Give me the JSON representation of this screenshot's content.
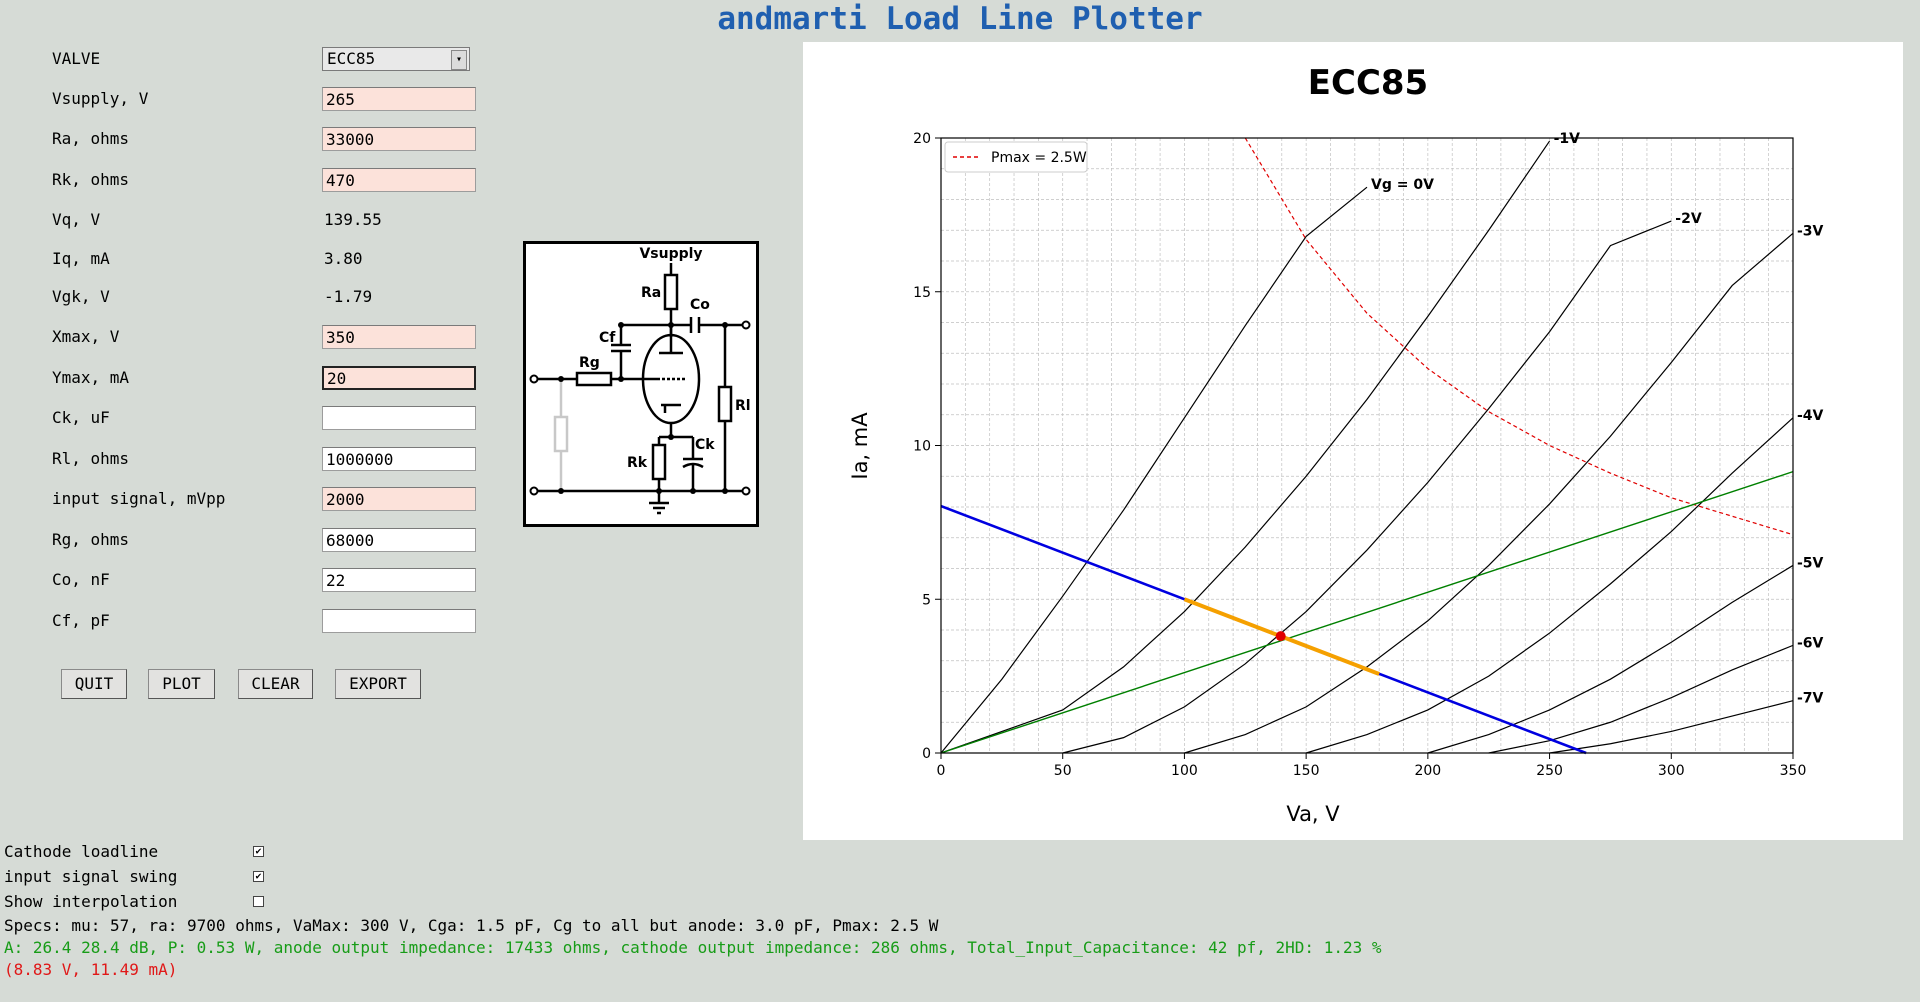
{
  "title": "andmarti Load Line Plotter",
  "params": [
    {
      "label": "VALVE",
      "type": "select",
      "value": "ECC85"
    },
    {
      "label": "Vsupply, V",
      "type": "input",
      "value": "265",
      "highlight": true
    },
    {
      "label": "Ra, ohms",
      "type": "input",
      "value": "33000",
      "highlight": true
    },
    {
      "label": "Rk, ohms",
      "type": "input",
      "value": "470",
      "highlight": true
    },
    {
      "label": "Vq, V",
      "type": "text",
      "value": "139.55"
    },
    {
      "label": "Iq, mA",
      "type": "text",
      "value": "3.80"
    },
    {
      "label": "Vgk, V",
      "type": "text",
      "value": "-1.79"
    },
    {
      "label": "Xmax, V",
      "type": "input",
      "value": "350",
      "highlight": true
    },
    {
      "label": "Ymax, mA",
      "type": "input",
      "value": "20",
      "highlight": true,
      "focused": true
    },
    {
      "label": "Ck, uF",
      "type": "input",
      "value": ""
    },
    {
      "label": "Rl, ohms",
      "type": "input",
      "value": "1000000"
    },
    {
      "label": "input signal, mVpp",
      "type": "input",
      "value": "2000",
      "highlight": true
    },
    {
      "label": "Rg, ohms",
      "type": "input",
      "value": "68000"
    },
    {
      "label": "Co, nF",
      "type": "input",
      "value": "22"
    },
    {
      "label": "Cf, pF",
      "type": "input",
      "value": ""
    }
  ],
  "buttons": {
    "quit": "QUIT",
    "plot": "PLOT",
    "clear": "CLEAR",
    "export": "EXPORT"
  },
  "schematic": {
    "vsupply": "Vsupply",
    "ra": "Ra",
    "co": "Co",
    "cf": "Cf",
    "rg": "Rg",
    "rl": "Rl",
    "rk": "Rk",
    "ck": "Ck"
  },
  "options": [
    {
      "label": "Cathode loadline",
      "checked": true
    },
    {
      "label": "input signal swing",
      "checked": true
    },
    {
      "label": "Show interpolation",
      "checked": false
    }
  ],
  "status": {
    "specs": "Specs: mu: 57, ra: 9700 ohms, VaMax: 300 V, Cga: 1.5 pF, Cg to all but anode: 3.0 pF, Pmax: 2.5 W",
    "results": "A: 26.4 28.4 dB, P: 0.53 W, anode output impedance: 17433 ohms, cathode output impedance: 286 ohms, Total_Input_Capacitance: 42 pf, 2HD: 1.23 %",
    "cursor": "(8.83 V, 11.49 mA)"
  },
  "colors": {
    "title": "#1f5fb0",
    "loadline": "#0000e0",
    "swing": "#f5a000",
    "cathode": "#008000",
    "pmax": "#e00000",
    "qpoint": "#e00000"
  },
  "chart_data": {
    "type": "line",
    "title": "ECC85",
    "xlabel": "Va, V",
    "ylabel": "Ia, mA",
    "xlim": [
      0,
      350
    ],
    "ylim": [
      0,
      20
    ],
    "xticks": [
      0,
      50,
      100,
      150,
      200,
      250,
      300,
      350
    ],
    "yticks": [
      0,
      5,
      10,
      15,
      20
    ],
    "grid": true,
    "legend": {
      "position": "top-left",
      "entries": [
        "Pmax = 2.5W"
      ]
    },
    "curves": [
      {
        "label": "Vg = 0V",
        "x": [
          0,
          25,
          50,
          75,
          100,
          125,
          150,
          175
        ],
        "y": [
          0,
          2.4,
          5.1,
          7.9,
          10.9,
          13.9,
          16.8,
          18.4
        ]
      },
      {
        "label": "-1V",
        "x": [
          0,
          50,
          75,
          100,
          125,
          150,
          175,
          200,
          225,
          250
        ],
        "y": [
          0,
          1.4,
          2.8,
          4.6,
          6.7,
          9.0,
          11.5,
          14.2,
          17.0,
          19.9
        ]
      },
      {
        "label": "-2V",
        "x": [
          50,
          75,
          100,
          125,
          150,
          175,
          200,
          225,
          250,
          275,
          300
        ],
        "y": [
          0,
          0.5,
          1.5,
          2.9,
          4.6,
          6.6,
          8.8,
          11.2,
          13.7,
          16.5,
          17.3
        ]
      },
      {
        "label": "-3V",
        "x": [
          100,
          125,
          150,
          175,
          200,
          225,
          250,
          275,
          300,
          325,
          350
        ],
        "y": [
          0,
          0.6,
          1.5,
          2.8,
          4.3,
          6.1,
          8.1,
          10.3,
          12.7,
          15.2,
          16.9
        ]
      },
      {
        "label": "-4V",
        "x": [
          150,
          175,
          200,
          225,
          250,
          275,
          300,
          325,
          350
        ],
        "y": [
          0,
          0.6,
          1.4,
          2.5,
          3.9,
          5.5,
          7.2,
          9.1,
          10.9
        ]
      },
      {
        "label": "-5V",
        "x": [
          200,
          225,
          250,
          275,
          300,
          325,
          350
        ],
        "y": [
          0,
          0.6,
          1.4,
          2.4,
          3.6,
          4.9,
          6.1
        ]
      },
      {
        "label": "-6V",
        "x": [
          225,
          250,
          275,
          300,
          325,
          350
        ],
        "y": [
          0,
          0.4,
          1.0,
          1.8,
          2.7,
          3.5
        ]
      },
      {
        "label": "-7V",
        "x": [
          250,
          275,
          300,
          325,
          350
        ],
        "y": [
          0,
          0.3,
          0.7,
          1.2,
          1.7
        ]
      }
    ],
    "pmax_curve": {
      "x": [
        125,
        150,
        175,
        200,
        225,
        250,
        275,
        300,
        325,
        350
      ],
      "y": [
        20.0,
        16.7,
        14.3,
        12.5,
        11.1,
        10.0,
        9.1,
        8.3,
        7.7,
        7.1
      ]
    },
    "loadline": {
      "x": [
        0,
        265
      ],
      "y": [
        8.03,
        0
      ]
    },
    "swing": {
      "x": [
        100,
        180
      ],
      "y": [
        5.0,
        2.57
      ]
    },
    "cathode_loadline": {
      "x": [
        0,
        350
      ],
      "y": [
        0,
        9.15
      ]
    },
    "qpoint": {
      "x": 139.55,
      "y": 3.8
    }
  }
}
